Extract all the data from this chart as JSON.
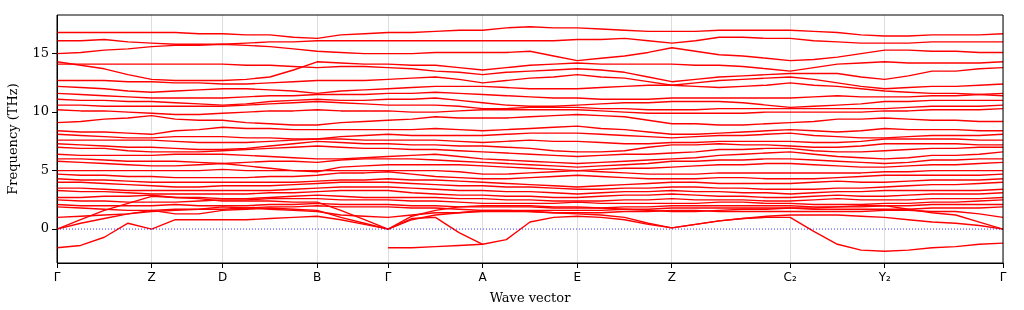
{
  "chart_data": {
    "type": "line",
    "xlabel": "Wave vector",
    "ylabel": "Frequency (THz)",
    "categories": [
      "Γ",
      null,
      null,
      null,
      "Z",
      null,
      null,
      "D",
      null,
      null,
      null,
      "B",
      null,
      null,
      "Γ",
      null,
      null,
      null,
      "A",
      null,
      null,
      null,
      "E",
      null,
      null,
      null,
      "Z",
      null,
      null,
      null,
      null,
      "C₂",
      null,
      null,
      null,
      "Y₂",
      null,
      null,
      null,
      null,
      "Γ"
    ],
    "ylim": [
      -2.9,
      18.3
    ],
    "yticks": [
      0,
      5,
      10,
      15
    ],
    "grid": "x",
    "legend": false,
    "ref_lines": [
      {
        "axis": "y",
        "value": 0,
        "color": "#0000ff",
        "line_style": "dotted"
      }
    ],
    "series": [
      {
        "color": "#ff0000",
        "values": [
          16.8,
          16.8,
          16.8,
          16.8,
          16.8,
          16.8,
          16.7,
          16.7,
          16.6,
          16.6,
          16.4,
          16.3,
          16.6,
          16.7,
          16.8,
          16.8,
          16.9,
          17.0,
          17.0,
          17.2,
          17.3,
          17.2,
          17.2,
          17.1,
          17.0,
          16.9,
          16.9,
          16.9,
          17.0,
          17.0,
          17.0,
          17.0,
          16.9,
          16.8,
          16.6,
          16.5,
          16.5,
          16.6,
          16.6,
          16.6,
          16.7
        ]
      },
      {
        "color": "#ff0000",
        "values": [
          16.1,
          16.1,
          16.2,
          16.0,
          15.9,
          15.8,
          15.8,
          15.8,
          15.9,
          16.0,
          16.0,
          16.1,
          16.1,
          16.1,
          16.1,
          16.1,
          16.1,
          16.1,
          16.1,
          16.1,
          16.1,
          16.1,
          16.2,
          16.2,
          16.3,
          16.1,
          15.9,
          16.1,
          16.4,
          16.4,
          16.3,
          16.3,
          16.1,
          16.0,
          15.9,
          15.9,
          15.9,
          16.0,
          16.0,
          16.0,
          16.0
        ]
      },
      {
        "color": "#ff0000",
        "values": [
          15.0,
          15.1,
          15.3,
          15.4,
          15.6,
          15.7,
          15.7,
          15.8,
          15.7,
          15.6,
          15.4,
          15.2,
          15.1,
          15.0,
          15.0,
          15.0,
          15.1,
          15.1,
          15.1,
          15.1,
          15.2,
          14.8,
          14.4,
          14.6,
          14.8,
          15.1,
          15.5,
          15.2,
          14.9,
          14.8,
          14.6,
          14.4,
          14.5,
          14.7,
          15.0,
          15.3,
          15.3,
          15.2,
          15.2,
          15.1,
          15.1
        ]
      },
      {
        "color": "#ff0000",
        "values": [
          14.3,
          14.0,
          13.7,
          13.2,
          12.8,
          12.7,
          12.7,
          12.7,
          12.8,
          13.0,
          13.6,
          14.3,
          14.2,
          14.1,
          14.1,
          14.0,
          14.0,
          13.8,
          13.6,
          13.8,
          14.0,
          14.1,
          14.2,
          14.1,
          14.1,
          14.1,
          14.1,
          14.0,
          14.0,
          13.9,
          13.7,
          13.5,
          13.8,
          14.1,
          14.2,
          14.3,
          14.2,
          14.2,
          14.2,
          14.2,
          14.3
        ]
      },
      {
        "color": "#ff0000",
        "values": [
          14.1,
          14.1,
          14.1,
          14.1,
          14.1,
          14.1,
          14.1,
          14.1,
          14.0,
          14.0,
          13.9,
          13.8,
          13.9,
          13.9,
          13.8,
          13.7,
          13.5,
          13.4,
          13.2,
          13.4,
          13.5,
          13.6,
          13.7,
          13.6,
          13.4,
          13.0,
          12.6,
          12.8,
          13.0,
          13.1,
          13.2,
          13.3,
          13.3,
          13.3,
          13.0,
          12.8,
          13.1,
          13.5,
          13.5,
          13.7,
          13.8
        ]
      },
      {
        "color": "#ff0000",
        "values": [
          12.7,
          12.7,
          12.7,
          12.6,
          12.6,
          12.5,
          12.5,
          12.4,
          12.4,
          12.5,
          12.6,
          12.7,
          12.7,
          12.7,
          12.8,
          12.9,
          13.0,
          12.8,
          12.5,
          12.7,
          12.9,
          13.0,
          13.2,
          13.0,
          12.9,
          12.6,
          12.3,
          12.5,
          12.7,
          12.8,
          12.9,
          13.0,
          12.8,
          12.5,
          12.2,
          12.0,
          12.1,
          12.2,
          12.2,
          12.3,
          12.4
        ]
      },
      {
        "color": "#ff0000",
        "values": [
          12.2,
          12.1,
          12.0,
          11.8,
          11.7,
          11.8,
          11.9,
          12.0,
          12.0,
          11.9,
          11.8,
          11.6,
          11.8,
          11.9,
          12.0,
          12.1,
          12.2,
          12.2,
          12.2,
          12.1,
          12.0,
          12.0,
          12.0,
          12.1,
          12.2,
          12.3,
          12.3,
          12.2,
          12.1,
          12.2,
          12.3,
          12.5,
          12.3,
          12.2,
          12.0,
          11.8,
          11.7,
          11.6,
          11.6,
          11.5,
          11.4
        ]
      },
      {
        "color": "#ff0000",
        "values": [
          11.6,
          11.5,
          11.4,
          11.3,
          11.2,
          11.2,
          11.2,
          11.2,
          11.3,
          11.4,
          11.4,
          11.5,
          11.5,
          11.5,
          11.6,
          11.6,
          11.7,
          11.6,
          11.5,
          11.4,
          11.3,
          11.2,
          11.2,
          11.1,
          11.1,
          11.1,
          11.2,
          11.2,
          11.2,
          11.2,
          11.2,
          11.2,
          11.3,
          11.4,
          11.3,
          11.3,
          11.3,
          11.4,
          11.4,
          11.5,
          11.6
        ]
      },
      {
        "color": "#ff0000",
        "values": [
          11.1,
          11.0,
          11.0,
          10.9,
          10.9,
          10.8,
          10.7,
          10.6,
          10.7,
          10.9,
          11.0,
          11.1,
          11.0,
          11.0,
          11.1,
          11.1,
          11.2,
          11.0,
          10.8,
          10.6,
          10.5,
          10.5,
          10.6,
          10.7,
          10.8,
          10.8,
          10.9,
          10.9,
          10.9,
          10.8,
          10.6,
          10.4,
          10.5,
          10.6,
          10.7,
          10.9,
          10.9,
          11.0,
          11.0,
          11.0,
          11.0
        ]
      },
      {
        "color": "#ff0000",
        "values": [
          10.6,
          10.6,
          10.5,
          10.5,
          10.5,
          10.5,
          10.5,
          10.5,
          10.6,
          10.7,
          10.8,
          10.9,
          10.8,
          10.7,
          10.6,
          10.6,
          10.6,
          10.5,
          10.3,
          10.3,
          10.4,
          10.4,
          10.4,
          10.3,
          10.3,
          10.2,
          10.2,
          10.2,
          10.3,
          10.3,
          10.3,
          10.3,
          10.3,
          10.3,
          10.3,
          10.3,
          10.4,
          10.5,
          10.5,
          10.5,
          10.6
        ]
      },
      {
        "color": "#ff0000",
        "values": [
          10.2,
          10.1,
          10.1,
          10.0,
          9.9,
          9.8,
          9.8,
          9.9,
          10.0,
          10.1,
          10.1,
          10.2,
          10.1,
          10.1,
          10.1,
          10.0,
          10.0,
          10.1,
          10.2,
          10.2,
          10.2,
          10.2,
          10.2,
          10.1,
          10.0,
          9.9,
          9.9,
          9.9,
          9.9,
          9.9,
          10.0,
          10.0,
          10.0,
          10.0,
          10.0,
          10.1,
          10.1,
          10.2,
          10.2,
          10.2,
          10.3
        ]
      },
      {
        "color": "#ff0000",
        "values": [
          9.1,
          9.2,
          9.4,
          9.5,
          9.7,
          9.4,
          9.3,
          9.3,
          9.1,
          9.0,
          8.9,
          8.9,
          9.1,
          9.2,
          9.3,
          9.4,
          9.6,
          9.5,
          9.5,
          9.5,
          9.6,
          9.7,
          9.8,
          9.7,
          9.6,
          9.3,
          9.0,
          9.0,
          8.9,
          8.9,
          9.0,
          9.1,
          9.2,
          9.4,
          9.4,
          9.5,
          9.4,
          9.3,
          9.3,
          9.2,
          9.2
        ]
      },
      {
        "color": "#ff0000",
        "values": [
          8.4,
          8.3,
          8.3,
          8.2,
          8.1,
          8.4,
          8.5,
          8.7,
          8.6,
          8.6,
          8.5,
          8.5,
          8.5,
          8.5,
          8.5,
          8.5,
          8.6,
          8.5,
          8.4,
          8.5,
          8.6,
          8.7,
          8.8,
          8.6,
          8.5,
          8.3,
          8.1,
          8.1,
          8.2,
          8.3,
          8.4,
          8.5,
          8.4,
          8.3,
          8.4,
          8.6,
          8.5,
          8.5,
          8.5,
          8.4,
          8.4
        ]
      },
      {
        "color": "#ff0000",
        "values": [
          8.1,
          8.0,
          7.9,
          7.8,
          7.8,
          7.9,
          7.9,
          7.9,
          7.8,
          7.8,
          7.7,
          7.7,
          7.9,
          8.0,
          8.1,
          8.0,
          8.0,
          8.0,
          8.0,
          8.1,
          8.2,
          8.2,
          8.2,
          8.1,
          8.0,
          7.9,
          7.8,
          7.9,
          8.0,
          8.0,
          8.1,
          8.2,
          8.0,
          7.9,
          7.8,
          7.8,
          7.9,
          8.0,
          8.0,
          8.0,
          8.1
        ]
      },
      {
        "color": "#ff0000",
        "values": [
          7.6,
          7.6,
          7.6,
          7.6,
          7.6,
          7.5,
          7.4,
          7.4,
          7.4,
          7.5,
          7.6,
          7.7,
          7.7,
          7.6,
          7.6,
          7.6,
          7.6,
          7.5,
          7.4,
          7.5,
          7.6,
          7.5,
          7.5,
          7.4,
          7.3,
          7.3,
          7.4,
          7.4,
          7.5,
          7.5,
          7.5,
          7.5,
          7.4,
          7.4,
          7.5,
          7.7,
          7.7,
          7.7,
          7.7,
          7.6,
          7.6
        ]
      },
      {
        "color": "#ff0000",
        "values": [
          7.3,
          7.2,
          7.1,
          7.0,
          7.0,
          6.9,
          6.8,
          6.8,
          6.9,
          7.1,
          7.3,
          7.5,
          7.4,
          7.3,
          7.3,
          7.2,
          7.2,
          7.1,
          7.1,
          7.0,
          6.9,
          6.7,
          6.6,
          6.6,
          6.7,
          7.0,
          7.2,
          7.2,
          7.3,
          7.2,
          7.2,
          7.1,
          7.0,
          7.0,
          7.1,
          7.3,
          7.3,
          7.3,
          7.3,
          7.2,
          7.2
        ]
      },
      {
        "color": "#ff0000",
        "values": [
          7.0,
          6.9,
          6.9,
          6.7,
          6.6,
          6.6,
          6.6,
          6.7,
          6.8,
          6.9,
          7.0,
          7.1,
          7.0,
          6.9,
          6.9,
          6.8,
          6.8,
          6.7,
          6.6,
          6.5,
          6.4,
          6.3,
          6.2,
          6.3,
          6.4,
          6.4,
          6.5,
          6.6,
          6.8,
          6.8,
          6.9,
          6.9,
          6.7,
          6.6,
          6.6,
          6.7,
          6.8,
          6.9,
          6.9,
          7.0,
          7.0
        ]
      },
      {
        "color": "#ff0000",
        "values": [
          6.4,
          6.3,
          6.3,
          6.3,
          6.3,
          6.4,
          6.4,
          6.4,
          6.3,
          6.2,
          6.1,
          6.0,
          6.0,
          6.1,
          6.2,
          6.3,
          6.4,
          6.2,
          6.0,
          5.9,
          5.8,
          5.7,
          5.6,
          5.7,
          5.8,
          5.9,
          6.0,
          6.1,
          6.3,
          6.4,
          6.5,
          6.6,
          6.4,
          6.2,
          6.1,
          6.0,
          6.1,
          6.3,
          6.3,
          6.4,
          6.6
        ]
      },
      {
        "color": "#ff0000",
        "values": [
          6.0,
          6.0,
          5.9,
          5.8,
          5.8,
          5.8,
          5.7,
          5.6,
          5.7,
          5.8,
          5.8,
          5.7,
          5.9,
          6.0,
          6.0,
          6.0,
          5.9,
          5.8,
          5.7,
          5.6,
          5.5,
          5.4,
          5.3,
          5.4,
          5.5,
          5.6,
          5.8,
          5.8,
          5.9,
          5.9,
          6.0,
          6.0,
          5.9,
          5.8,
          5.7,
          5.6,
          5.7,
          5.9,
          5.9,
          6.0,
          6.0
        ]
      },
      {
        "color": "#ff0000",
        "values": [
          5.8,
          5.7,
          5.6,
          5.5,
          5.4,
          5.4,
          5.5,
          5.6,
          5.4,
          5.2,
          5.0,
          4.9,
          5.3,
          5.4,
          5.5,
          5.5,
          5.5,
          5.5,
          5.4,
          5.3,
          5.2,
          5.1,
          5.0,
          5.1,
          5.2,
          5.2,
          5.3,
          5.4,
          5.5,
          5.5,
          5.6,
          5.6,
          5.5,
          5.4,
          5.3,
          5.3,
          5.4,
          5.5,
          5.5,
          5.6,
          5.7
        ]
      },
      {
        "color": "#ff0000",
        "values": [
          5.0,
          5.0,
          5.0,
          5.0,
          5.0,
          5.0,
          5.0,
          5.1,
          5.0,
          5.0,
          5.0,
          5.0,
          5.0,
          5.0,
          5.0,
          5.0,
          5.0,
          4.9,
          4.7,
          4.7,
          4.8,
          4.9,
          5.0,
          4.9,
          4.8,
          4.7,
          4.7,
          4.7,
          4.8,
          4.8,
          4.8,
          4.8,
          4.8,
          4.8,
          4.8,
          4.9,
          4.9,
          5.0,
          5.0,
          5.0,
          5.0
        ]
      },
      {
        "color": "#ff0000",
        "values": [
          4.7,
          4.6,
          4.6,
          4.5,
          4.5,
          4.4,
          4.4,
          4.4,
          4.4,
          4.5,
          4.5,
          4.6,
          4.8,
          4.8,
          4.9,
          4.7,
          4.5,
          4.4,
          4.3,
          4.3,
          4.4,
          4.5,
          4.6,
          4.5,
          4.4,
          4.3,
          4.3,
          4.3,
          4.4,
          4.4,
          4.3,
          4.3,
          4.3,
          4.4,
          4.5,
          4.6,
          4.6,
          4.6,
          4.6,
          4.6,
          4.7
        ]
      },
      {
        "color": "#ff0000",
        "values": [
          4.3,
          4.2,
          4.2,
          4.1,
          4.0,
          4.0,
          4.0,
          4.0,
          4.0,
          4.0,
          4.0,
          4.1,
          4.2,
          4.2,
          4.3,
          4.2,
          4.2,
          4.1,
          4.0,
          3.9,
          3.8,
          3.7,
          3.6,
          3.7,
          3.8,
          3.9,
          4.0,
          4.0,
          3.9,
          3.9,
          3.9,
          3.9,
          4.0,
          4.1,
          4.0,
          4.0,
          4.1,
          4.2,
          4.2,
          4.2,
          4.3
        ]
      },
      {
        "color": "#ff0000",
        "values": [
          4.0,
          4.0,
          3.9,
          3.8,
          3.7,
          3.6,
          3.6,
          3.7,
          3.7,
          3.7,
          3.8,
          3.9,
          4.0,
          4.0,
          4.0,
          3.9,
          3.8,
          3.7,
          3.7,
          3.6,
          3.6,
          3.5,
          3.4,
          3.4,
          3.5,
          3.5,
          3.6,
          3.6,
          3.5,
          3.5,
          3.4,
          3.4,
          3.4,
          3.5,
          3.5,
          3.6,
          3.7,
          3.8,
          3.8,
          3.9,
          4.0
        ]
      },
      {
        "color": "#ff0000",
        "values": [
          3.5,
          3.5,
          3.4,
          3.3,
          3.3,
          3.3,
          3.3,
          3.3,
          3.3,
          3.3,
          3.4,
          3.5,
          3.6,
          3.6,
          3.6,
          3.5,
          3.4,
          3.3,
          3.3,
          3.2,
          3.2,
          3.1,
          3.0,
          3.1,
          3.2,
          3.2,
          3.3,
          3.2,
          3.2,
          3.1,
          3.1,
          3.0,
          3.1,
          3.2,
          3.2,
          3.3,
          3.3,
          3.3,
          3.3,
          3.3,
          3.4
        ]
      },
      {
        "color": "#ff0000",
        "values": [
          3.3,
          3.2,
          3.2,
          3.1,
          3.0,
          3.0,
          3.0,
          3.0,
          3.0,
          3.1,
          3.1,
          3.2,
          3.3,
          3.3,
          3.3,
          3.1,
          3.0,
          2.9,
          2.9,
          2.8,
          2.8,
          2.7,
          2.7,
          2.8,
          2.9,
          2.9,
          3.0,
          2.9,
          2.8,
          2.8,
          2.7,
          2.7,
          2.8,
          2.9,
          2.8,
          2.8,
          2.9,
          3.0,
          3.0,
          3.0,
          3.1
        ]
      },
      {
        "color": "#ff0000",
        "values": [
          2.7,
          2.7,
          2.8,
          2.8,
          2.9,
          2.7,
          2.7,
          2.6,
          2.6,
          2.7,
          2.8,
          2.9,
          2.8,
          2.7,
          2.7,
          2.7,
          2.7,
          2.6,
          2.6,
          2.5,
          2.5,
          2.4,
          2.4,
          2.4,
          2.5,
          2.5,
          2.6,
          2.5,
          2.5,
          2.5,
          2.4,
          2.4,
          2.5,
          2.6,
          2.5,
          2.5,
          2.5,
          2.6,
          2.6,
          2.6,
          2.7
        ]
      },
      {
        "color": "#ff0000",
        "values": [
          2.5,
          2.4,
          2.4,
          2.3,
          2.3,
          2.3,
          2.4,
          2.5,
          2.5,
          2.6,
          2.6,
          2.6,
          2.5,
          2.5,
          2.5,
          2.4,
          2.4,
          2.3,
          2.2,
          2.2,
          2.2,
          2.2,
          2.3,
          2.2,
          2.2,
          2.2,
          2.2,
          2.2,
          2.3,
          2.3,
          2.2,
          2.2,
          2.1,
          2.1,
          2.1,
          2.2,
          2.2,
          2.3,
          2.3,
          2.4,
          2.5
        ]
      },
      {
        "color": "#ff0000",
        "values": [
          2.1,
          2.0,
          2.0,
          2.0,
          2.0,
          2.1,
          2.0,
          2.0,
          2.0,
          2.1,
          2.1,
          2.2,
          2.1,
          2.1,
          2.1,
          2.0,
          2.0,
          1.9,
          1.9,
          1.9,
          1.9,
          1.8,
          1.8,
          1.8,
          1.9,
          1.9,
          2.0,
          2.0,
          2.0,
          2.0,
          2.0,
          2.0,
          1.9,
          1.9,
          1.9,
          2.0,
          2.0,
          2.1,
          2.1,
          2.1,
          2.1
        ]
      },
      {
        "color": "#ff0000",
        "values": [
          1.9,
          1.8,
          1.7,
          1.6,
          1.6,
          1.7,
          1.7,
          1.7,
          1.8,
          1.9,
          1.9,
          2.0,
          1.9,
          1.9,
          1.9,
          1.8,
          1.8,
          1.7,
          1.6,
          1.6,
          1.6,
          1.6,
          1.6,
          1.6,
          1.7,
          1.7,
          1.8,
          1.8,
          1.8,
          1.8,
          1.8,
          1.8,
          1.7,
          1.7,
          1.7,
          1.7,
          1.7,
          1.8,
          1.8,
          1.8,
          1.9
        ]
      },
      {
        "color": "#ff0000",
        "values": [
          1.0,
          1.1,
          1.2,
          1.3,
          1.5,
          1.6,
          1.7,
          1.9,
          1.8,
          1.7,
          1.6,
          1.5,
          1.2,
          1.1,
          1.0,
          1.2,
          1.4,
          1.4,
          1.5,
          1.5,
          1.5,
          1.4,
          1.4,
          1.4,
          1.5,
          1.5,
          1.6,
          1.6,
          1.5,
          1.5,
          1.5,
          1.5,
          1.5,
          1.5,
          1.5,
          1.6,
          1.6,
          1.5,
          1.5,
          1.3,
          1.0
        ]
      },
      {
        "color": "#ff0000",
        "values": [
          0,
          0.8,
          1.6,
          2.2,
          2.8,
          2.7,
          2.6,
          2.4,
          2.4,
          2.4,
          2.3,
          2.3,
          1.6,
          0.8,
          0,
          1.1,
          1.6,
          1.9,
          2.0,
          2.0,
          2.0,
          1.9,
          1.9,
          1.8,
          1.7,
          1.6,
          1.5,
          1.5,
          1.6,
          1.7,
          1.7,
          1.8,
          1.8,
          1.9,
          2.0,
          2.0,
          1.7,
          1.4,
          1.2,
          0.6,
          0
        ]
      },
      {
        "color": "#ff0000",
        "values": [
          0,
          0.5,
          0.9,
          1.3,
          1.6,
          1.3,
          1.3,
          1.6,
          1.7,
          1.8,
          1.7,
          1.6,
          1.0,
          0.5,
          0,
          0.8,
          1.2,
          1.4,
          1.6,
          1.6,
          1.5,
          1.4,
          1.3,
          1.2,
          1.0,
          0.5,
          0.1,
          0.4,
          0.7,
          0.9,
          1.1,
          1.2,
          1.2,
          1.2,
          1.1,
          1.0,
          0.8,
          0.6,
          0.5,
          0.3,
          0
        ]
      },
      {
        "color": "#ff0000",
        "values": [
          -1.6,
          -1.4,
          -0.7,
          0.5,
          0,
          0.8,
          0.8,
          0.8,
          0.8,
          0.9,
          1.0,
          1.1,
          0.8,
          0.4,
          0,
          0.9,
          1.0,
          -0.3,
          -1.3,
          -0.9,
          0.6,
          1.0,
          1.1,
          1.0,
          0.8,
          0.4,
          0.1,
          0.4,
          0.7,
          0.9,
          1.0,
          1.0,
          -0.2,
          -1.3,
          -1.8,
          -1.9,
          -1.8,
          -1.6,
          -1.5,
          -1.3,
          -1.2
        ]
      },
      {
        "color": "#ff0000",
        "values": [
          null,
          null,
          null,
          null,
          null,
          null,
          null,
          null,
          null,
          null,
          null,
          null,
          null,
          null,
          -1.6,
          -1.6,
          -1.5,
          -1.4,
          -1.3,
          null,
          null,
          null,
          null,
          null,
          null,
          null,
          null,
          null,
          null,
          null,
          null,
          null,
          null,
          null,
          null,
          null,
          null,
          null,
          null,
          null,
          null
        ]
      }
    ]
  }
}
